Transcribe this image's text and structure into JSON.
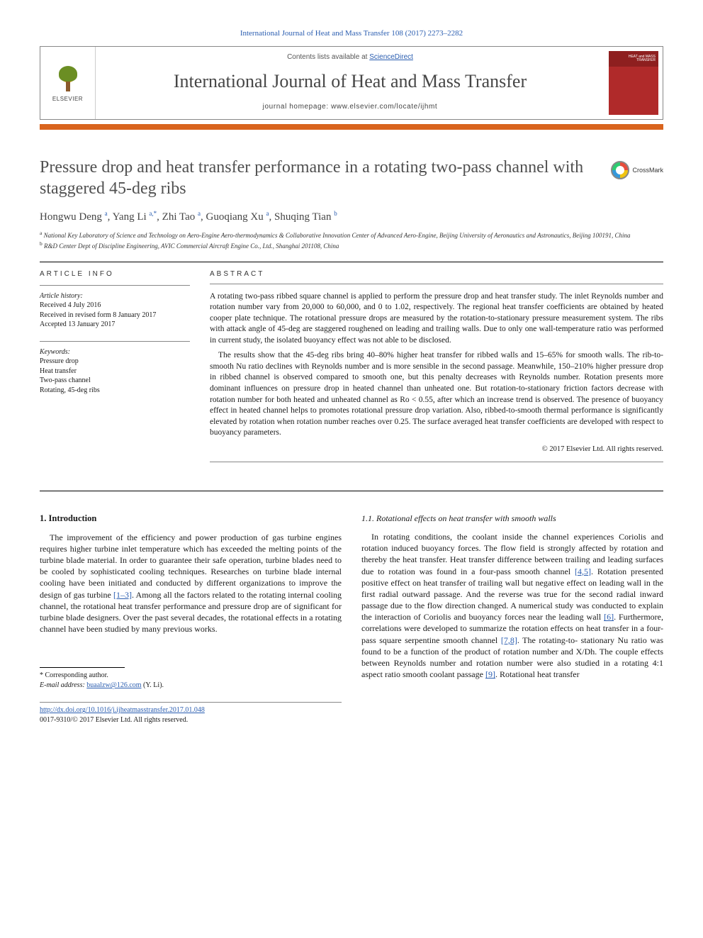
{
  "citation": "International Journal of Heat and Mass Transfer 108 (2017) 2273–2282",
  "header": {
    "contents_prefix": "Contents lists available at ",
    "contents_link": "ScienceDirect",
    "journal": "International Journal of Heat and Mass Transfer",
    "homepage_prefix": "journal homepage: ",
    "homepage_url": "www.elsevier.com/locate/ijhmt",
    "elsevier_label": "ELSEVIER",
    "cover_label": "HEAT and MASS TRANSFER"
  },
  "article": {
    "title": "Pressure drop and heat transfer performance in a rotating two-pass channel with staggered 45-deg ribs",
    "crossmark": "CrossMark",
    "authors_html": "Hongwu Deng <sup>a</sup>, Yang Li <sup>a,*</sup>, Zhi Tao <sup>a</sup>, Guoqiang Xu <sup>a</sup>, Shuqing Tian <sup>b</sup>",
    "affiliations": [
      "a National Key Laboratory of Science and Technology on Aero-Engine Aero-thermodynamics & Collaborative Innovation Center of Advanced Aero-Engine, Beijing University of Aeronautics and Astronautics, Beijing 100191, China",
      "b R&D Center Dept of Discipline Engineering, AVIC Commercial Aircraft Engine Co., Ltd., Shanghai 201108, China"
    ]
  },
  "info": {
    "label": "ARTICLE INFO",
    "history_label": "Article history:",
    "history": [
      "Received 4 July 2016",
      "Received in revised form 8 January 2017",
      "Accepted 13 January 2017"
    ],
    "keywords_label": "Keywords:",
    "keywords": [
      "Pressure drop",
      "Heat transfer",
      "Two-pass channel",
      "Rotating, 45-deg ribs"
    ]
  },
  "abstract": {
    "label": "ABSTRACT",
    "paragraphs": [
      "A rotating two-pass ribbed square channel is applied to perform the pressure drop and heat transfer study. The inlet Reynolds number and rotation number vary from 20,000 to 60,000, and 0 to 1.02, respectively. The regional heat transfer coefficients are obtained by heated cooper plate technique. The rotational pressure drops are measured by the rotation-to-stationary pressure measurement system. The ribs with attack angle of 45-deg are staggered roughened on leading and trailing walls. Due to only one wall-temperature ratio was performed in current study, the isolated buoyancy effect was not able to be disclosed.",
      "The results show that the 45-deg ribs bring 40–80% higher heat transfer for ribbed walls and 15–65% for smooth walls. The rib-to-smooth Nu ratio declines with Reynolds number and is more sensible in the second passage. Meanwhile, 150–210% higher pressure drop in ribbed channel is observed compared to smooth one, but this penalty decreases with Reynolds number. Rotation presents more dominant influences on pressure drop in heated channel than unheated one. But rotation-to-stationary friction factors decrease with rotation number for both heated and unheated channel as Ro < 0.55, after which an increase trend is observed. The presence of buoyancy effect in heated channel helps to promotes rotational pressure drop variation. Also, ribbed-to-smooth thermal performance is significantly elevated by rotation when rotation number reaches over 0.25. The surface averaged heat transfer coefficients are developed with respect to buoyancy parameters."
    ],
    "copyright": "© 2017 Elsevier Ltd. All rights reserved."
  },
  "body": {
    "intro_heading": "1. Introduction",
    "intro_text": "The improvement of the efficiency and power production of gas turbine engines requires higher turbine inlet temperature which has exceeded the melting points of the turbine blade material. In order to guarantee their safe operation, turbine blades need to be cooled by sophisticated cooling techniques. Researches on turbine blade internal cooling have been initiated and conducted by different organizations to improve the design of gas turbine ",
    "intro_ref1": "[1–3]",
    "intro_text2": ". Among all the factors related to the rotating internal cooling channel, the rotational heat transfer performance and pressure drop are of significant for turbine blade designers. Over the past several decades, the rotational effects in a rotating channel have been studied by many previous works.",
    "sub_heading": "1.1. Rotational effects on heat transfer with smooth walls",
    "sub_text1": "In rotating conditions, the coolant inside the channel experiences Coriolis and rotation induced buoyancy forces. The flow field is strongly affected by rotation and thereby the heat transfer. Heat transfer difference between trailing and leading surfaces due to rotation was found in a four-pass smooth channel ",
    "sub_ref1": "[4,5]",
    "sub_text2": ". Rotation presented positive effect on heat transfer of trailing wall but negative effect on leading wall in the first radial outward passage. And the reverse was true for the second radial inward passage due to the flow direction changed. A numerical study was conducted to explain the interaction of Coriolis and buoyancy forces near the leading wall ",
    "sub_ref2": "[6]",
    "sub_text3": ". Furthermore, correlations were developed to summarize the rotation effects on heat transfer in a four-pass square serpentine smooth channel ",
    "sub_ref3": "[7,8]",
    "sub_text4": ". The rotating-to- stationary Nu ratio was found to be a function of the product of rotation number and X/Dh. The couple effects between Reynolds number and rotation number were also studied in a rotating 4:1 aspect ratio smooth coolant passage ",
    "sub_ref4": "[9]",
    "sub_text5": ". Rotational heat transfer"
  },
  "footer": {
    "corr_label": "* Corresponding author.",
    "email_label": "E-mail address: ",
    "email": "buaalzw@126.com",
    "email_who": " (Y. Li).",
    "doi_url": "http://dx.doi.org/10.1016/j.ijheatmasstransfer.2017.01.048",
    "issn_line": "0017-9310/© 2017 Elsevier Ltd. All rights reserved."
  },
  "colors": {
    "link": "#2a5db0",
    "orange": "#d9641e",
    "cover": "#b02a2a"
  }
}
